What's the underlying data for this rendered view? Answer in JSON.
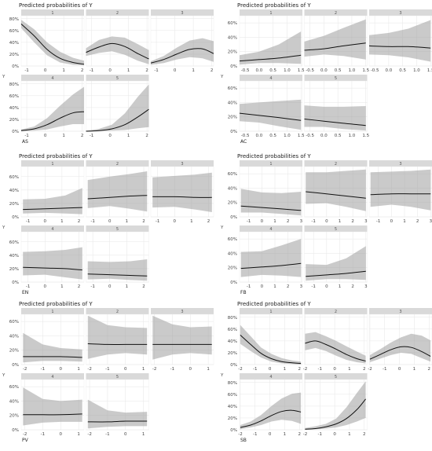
{
  "chart_data": [
    {
      "type": "line",
      "title": "Predicted probabilities of Y",
      "xlabel": "AS",
      "ylabel": "Y",
      "x": [
        -1.3,
        -0.6,
        0.1,
        0.8,
        1.5,
        2.1
      ],
      "xlim": [
        -1.3,
        2.1
      ],
      "xticks": [
        -1,
        0,
        1,
        2
      ],
      "ylim": [
        0,
        0.85
      ],
      "yticks": [
        0,
        0.2,
        0.4,
        0.6,
        0.8
      ],
      "ytick_labels": [
        "0%",
        "20%",
        "40%",
        "60%",
        "80%"
      ],
      "series": [
        {
          "name": "1",
          "values": [
            0.71,
            0.51,
            0.28,
            0.13,
            0.06,
            0.03
          ],
          "lower": [
            0.64,
            0.4,
            0.18,
            0.06,
            0.02,
            0.01
          ],
          "upper": [
            0.78,
            0.62,
            0.4,
            0.24,
            0.14,
            0.09
          ]
        },
        {
          "name": "2",
          "values": [
            0.23,
            0.32,
            0.38,
            0.33,
            0.21,
            0.12
          ],
          "lower": [
            0.17,
            0.22,
            0.25,
            0.19,
            0.09,
            0.03
          ],
          "upper": [
            0.3,
            0.44,
            0.5,
            0.48,
            0.37,
            0.27
          ]
        },
        {
          "name": "3",
          "values": [
            0.05,
            0.11,
            0.2,
            0.28,
            0.29,
            0.21
          ],
          "lower": [
            0.02,
            0.05,
            0.11,
            0.15,
            0.13,
            0.07
          ],
          "upper": [
            0.08,
            0.17,
            0.31,
            0.43,
            0.47,
            0.42
          ]
        },
        {
          "name": "4",
          "values": [
            0.01,
            0.04,
            0.11,
            0.22,
            0.31,
            0.33
          ],
          "lower": [
            0.0,
            0.01,
            0.03,
            0.08,
            0.12,
            0.12
          ],
          "upper": [
            0.03,
            0.08,
            0.22,
            0.43,
            0.62,
            0.75
          ]
        },
        {
          "name": "5",
          "values": [
            0.0,
            0.01,
            0.04,
            0.11,
            0.24,
            0.37
          ],
          "lower": [
            0.0,
            0.0,
            0.01,
            0.02,
            0.05,
            0.07
          ],
          "upper": [
            0.01,
            0.04,
            0.11,
            0.3,
            0.58,
            0.79
          ]
        }
      ]
    },
    {
      "type": "line",
      "title": "Predicted probabilities of Y",
      "xlabel": "AC",
      "ylabel": "Y",
      "x": [
        -0.7,
        0.0,
        0.7,
        1.5
      ],
      "xlim": [
        -0.7,
        1.55
      ],
      "xticks": [
        -0.5,
        0.0,
        0.5,
        1.0,
        1.5
      ],
      "xtick_labels": [
        "-0.5",
        "0.0",
        "0.5",
        "1.0",
        "1.5"
      ],
      "ylim": [
        0,
        0.7
      ],
      "yticks": [
        0,
        0.2,
        0.4,
        0.6
      ],
      "ytick_labels": [
        "0%",
        "20%",
        "40%",
        "60%"
      ],
      "series": [
        {
          "name": "1",
          "values": [
            0.07,
            0.09,
            0.11,
            0.15
          ],
          "lower": [
            0.02,
            0.04,
            0.04,
            0.03
          ],
          "upper": [
            0.15,
            0.2,
            0.3,
            0.48
          ]
        },
        {
          "name": "2",
          "values": [
            0.22,
            0.24,
            0.28,
            0.32
          ],
          "lower": [
            0.13,
            0.16,
            0.14,
            0.09
          ],
          "upper": [
            0.34,
            0.42,
            0.53,
            0.65
          ]
        },
        {
          "name": "3",
          "values": [
            0.28,
            0.27,
            0.27,
            0.25
          ],
          "lower": [
            0.16,
            0.15,
            0.12,
            0.06
          ],
          "upper": [
            0.43,
            0.46,
            0.52,
            0.64
          ]
        },
        {
          "name": "4",
          "values": [
            0.25,
            0.22,
            0.19,
            0.15
          ],
          "lower": [
            0.14,
            0.12,
            0.07,
            0.02
          ],
          "upper": [
            0.38,
            0.4,
            0.42,
            0.44
          ]
        },
        {
          "name": "5",
          "values": [
            0.17,
            0.14,
            0.11,
            0.08
          ],
          "lower": [
            0.06,
            0.06,
            0.03,
            0.01
          ],
          "upper": [
            0.36,
            0.34,
            0.34,
            0.35
          ]
        }
      ]
    },
    {
      "type": "line",
      "title": "Predicted probabilities of Y",
      "xlabel": "EN",
      "ylabel": "Y",
      "x": [
        -1.3,
        0.0,
        1.2,
        2.2
      ],
      "xlim": [
        -1.4,
        2.3
      ],
      "xticks": [
        -1,
        0,
        1,
        2
      ],
      "ylim": [
        0,
        0.75
      ],
      "yticks": [
        0,
        0.2,
        0.4,
        0.6
      ],
      "ytick_labels": [
        "0%",
        "20%",
        "40%",
        "60%"
      ],
      "series": [
        {
          "name": "1",
          "values": [
            0.11,
            0.12,
            0.13,
            0.14
          ],
          "lower": [
            0.05,
            0.06,
            0.05,
            0.04
          ],
          "upper": [
            0.26,
            0.27,
            0.32,
            0.43
          ]
        },
        {
          "name": "2",
          "values": [
            0.27,
            0.29,
            0.31,
            0.32
          ],
          "lower": [
            0.13,
            0.16,
            0.12,
            0.08
          ],
          "upper": [
            0.55,
            0.6,
            0.64,
            0.68
          ]
        },
        {
          "name": "3",
          "values": [
            0.3,
            0.3,
            0.29,
            0.29
          ],
          "lower": [
            0.14,
            0.15,
            0.11,
            0.07
          ],
          "upper": [
            0.59,
            0.61,
            0.63,
            0.66
          ]
        },
        {
          "name": "4",
          "values": [
            0.22,
            0.21,
            0.2,
            0.18
          ],
          "lower": [
            0.1,
            0.11,
            0.07,
            0.04
          ],
          "upper": [
            0.45,
            0.46,
            0.48,
            0.52
          ]
        },
        {
          "name": "5",
          "values": [
            0.12,
            0.11,
            0.1,
            0.09
          ],
          "lower": [
            0.04,
            0.05,
            0.03,
            0.02
          ],
          "upper": [
            0.31,
            0.3,
            0.31,
            0.34
          ]
        }
      ]
    },
    {
      "type": "line",
      "title": "Predicted probabilities of Y",
      "xlabel": "FB",
      "ylabel": "Y",
      "x": [
        -1.6,
        0.0,
        1.5,
        3.0
      ],
      "xlim": [
        -1.7,
        3.1
      ],
      "xticks": [
        -1,
        0,
        1,
        2,
        3
      ],
      "ylim": [
        0,
        0.7
      ],
      "yticks": [
        0,
        0.2,
        0.4,
        0.6
      ],
      "ytick_labels": [
        "0%",
        "20%",
        "40%",
        "60%"
      ],
      "series": [
        {
          "name": "1",
          "values": [
            0.15,
            0.13,
            0.11,
            0.09
          ],
          "lower": [
            0.06,
            0.06,
            0.04,
            0.02
          ],
          "upper": [
            0.39,
            0.34,
            0.33,
            0.35
          ]
        },
        {
          "name": "2",
          "values": [
            0.35,
            0.32,
            0.29,
            0.26
          ],
          "lower": [
            0.18,
            0.19,
            0.14,
            0.08
          ],
          "upper": [
            0.62,
            0.62,
            0.64,
            0.66
          ]
        },
        {
          "name": "3",
          "values": [
            0.31,
            0.32,
            0.32,
            0.32
          ],
          "lower": [
            0.14,
            0.17,
            0.14,
            0.09
          ],
          "upper": [
            0.62,
            0.63,
            0.64,
            0.66
          ]
        },
        {
          "name": "4",
          "values": [
            0.19,
            0.21,
            0.23,
            0.26
          ],
          "lower": [
            0.07,
            0.1,
            0.09,
            0.07
          ],
          "upper": [
            0.42,
            0.43,
            0.51,
            0.6
          ]
        },
        {
          "name": "5",
          "values": [
            0.08,
            0.1,
            0.12,
            0.15
          ],
          "lower": [
            0.02,
            0.04,
            0.04,
            0.03
          ],
          "upper": [
            0.25,
            0.24,
            0.33,
            0.5
          ]
        }
      ]
    },
    {
      "type": "line",
      "title": "Predicted probabilities of Y",
      "xlabel": "PV",
      "ylabel": "Y",
      "x": [
        -2.1,
        -1.0,
        0.0,
        1.2
      ],
      "xlim": [
        -2.2,
        1.3
      ],
      "xticks": [
        -2,
        -1,
        0,
        1
      ],
      "ylim": [
        0,
        0.7
      ],
      "yticks": [
        0,
        0.2,
        0.4,
        0.6
      ],
      "ytick_labels": [
        "0%",
        "20%",
        "40%",
        "60%"
      ],
      "series": [
        {
          "name": "1",
          "values": [
            0.11,
            0.11,
            0.11,
            0.1
          ],
          "lower": [
            0.03,
            0.05,
            0.05,
            0.04
          ],
          "upper": [
            0.44,
            0.28,
            0.23,
            0.21
          ]
        },
        {
          "name": "2",
          "values": [
            0.29,
            0.28,
            0.28,
            0.28
          ],
          "lower": [
            0.08,
            0.14,
            0.16,
            0.14
          ],
          "upper": [
            0.68,
            0.55,
            0.52,
            0.51
          ]
        },
        {
          "name": "3",
          "values": [
            0.28,
            0.28,
            0.28,
            0.28
          ],
          "lower": [
            0.07,
            0.14,
            0.16,
            0.14
          ],
          "upper": [
            0.68,
            0.56,
            0.52,
            0.53
          ]
        },
        {
          "name": "4",
          "values": [
            0.21,
            0.21,
            0.21,
            0.22
          ],
          "lower": [
            0.06,
            0.1,
            0.11,
            0.11
          ],
          "upper": [
            0.59,
            0.43,
            0.4,
            0.42
          ]
        },
        {
          "name": "5",
          "values": [
            0.11,
            0.11,
            0.12,
            0.12
          ],
          "lower": [
            0.02,
            0.04,
            0.05,
            0.05
          ],
          "upper": [
            0.42,
            0.27,
            0.24,
            0.25
          ]
        }
      ]
    },
    {
      "type": "line",
      "title": "Predicted probabilities of Y",
      "xlabel": "SB",
      "ylabel": "Y",
      "x": [
        -2.0,
        -1.3,
        -0.6,
        0.1,
        0.8,
        1.5,
        2.1
      ],
      "xlim": [
        -2.05,
        2.2
      ],
      "xticks": [
        -2,
        -1,
        0,
        1,
        2
      ],
      "ylim": [
        0,
        0.85
      ],
      "yticks": [
        0,
        0.2,
        0.4,
        0.6,
        0.8
      ],
      "ytick_labels": [
        "0%",
        "20%",
        "40%",
        "60%",
        "80%"
      ],
      "series": [
        {
          "name": "1",
          "values": [
            0.5,
            0.34,
            0.19,
            0.1,
            0.05,
            0.03,
            0.02
          ],
          "lower": [
            0.35,
            0.23,
            0.12,
            0.05,
            0.02,
            0.01,
            0.0
          ],
          "upper": [
            0.67,
            0.48,
            0.29,
            0.18,
            0.11,
            0.07,
            0.05
          ]
        },
        {
          "name": "2",
          "values": [
            0.36,
            0.4,
            0.34,
            0.26,
            0.17,
            0.1,
            0.06
          ],
          "lower": [
            0.24,
            0.28,
            0.23,
            0.15,
            0.08,
            0.04,
            0.02
          ],
          "upper": [
            0.52,
            0.55,
            0.48,
            0.4,
            0.31,
            0.22,
            0.15
          ]
        },
        {
          "name": "3",
          "values": [
            0.09,
            0.17,
            0.25,
            0.3,
            0.29,
            0.22,
            0.14
          ],
          "lower": [
            0.04,
            0.1,
            0.16,
            0.2,
            0.18,
            0.11,
            0.05
          ],
          "upper": [
            0.16,
            0.26,
            0.37,
            0.46,
            0.52,
            0.49,
            0.41
          ]
        },
        {
          "name": "4",
          "values": [
            0.04,
            0.08,
            0.15,
            0.24,
            0.31,
            0.33,
            0.3
          ],
          "lower": [
            0.01,
            0.04,
            0.08,
            0.14,
            0.17,
            0.15,
            0.1
          ],
          "upper": [
            0.08,
            0.14,
            0.25,
            0.4,
            0.53,
            0.61,
            0.63
          ]
        },
        {
          "name": "5",
          "values": [
            0.01,
            0.02,
            0.05,
            0.1,
            0.19,
            0.34,
            0.52
          ],
          "lower": [
            0.0,
            0.01,
            0.02,
            0.04,
            0.08,
            0.14,
            0.2
          ],
          "upper": [
            0.03,
            0.06,
            0.1,
            0.19,
            0.38,
            0.62,
            0.82
          ]
        }
      ]
    }
  ]
}
